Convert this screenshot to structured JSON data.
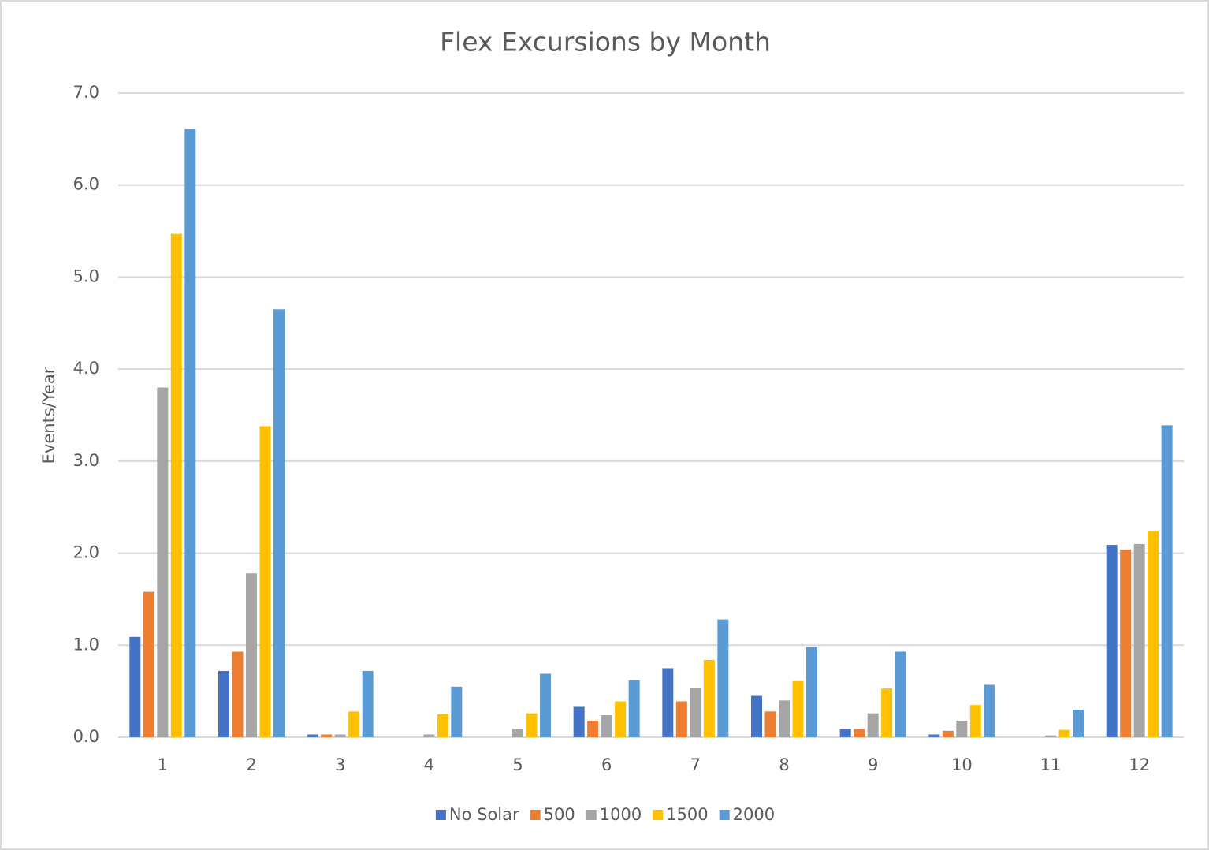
{
  "chart_data": {
    "type": "bar",
    "title": "Flex Excursions by Month",
    "y_label": "Events/Year",
    "categories": [
      "1",
      "2",
      "3",
      "4",
      "5",
      "6",
      "7",
      "8",
      "9",
      "10",
      "11",
      "12"
    ],
    "series": [
      {
        "name": "No Solar",
        "color": "#4472c4",
        "values": [
          1.09,
          0.72,
          0.03,
          0,
          0,
          0.33,
          0.75,
          0.45,
          0.09,
          0.03,
          0,
          2.09
        ]
      },
      {
        "name": "500",
        "color": "#ed7d31",
        "values": [
          1.58,
          0.93,
          0.03,
          0,
          0,
          0.18,
          0.39,
          0.28,
          0.09,
          0.07,
          0,
          2.04
        ]
      },
      {
        "name": "1000",
        "color": "#a5a5a5",
        "values": [
          3.8,
          1.78,
          0.03,
          0.03,
          0.09,
          0.24,
          0.54,
          0.4,
          0.26,
          0.18,
          0.02,
          2.1
        ]
      },
      {
        "name": "1500",
        "color": "#ffc000",
        "values": [
          5.47,
          3.38,
          0.28,
          0.25,
          0.26,
          0.39,
          0.84,
          0.61,
          0.53,
          0.35,
          0.08,
          2.24
        ]
      },
      {
        "name": "2000",
        "color": "#5b9bd5",
        "values": [
          6.61,
          4.65,
          0.72,
          0.55,
          0.69,
          0.62,
          1.28,
          0.98,
          0.93,
          0.57,
          0.3,
          3.39
        ]
      }
    ],
    "ylim": [
      0,
      7
    ],
    "yticks": [
      {
        "value": 0,
        "label": "0.0"
      },
      {
        "value": 1,
        "label": "1.0"
      },
      {
        "value": 2,
        "label": "2.0"
      },
      {
        "value": 3,
        "label": "3.0"
      },
      {
        "value": 4,
        "label": "4.0"
      },
      {
        "value": 5,
        "label": "5.0"
      },
      {
        "value": 6,
        "label": "6.0"
      },
      {
        "value": 7,
        "label": "7.0"
      }
    ],
    "grid": true,
    "legend": "bottom"
  }
}
